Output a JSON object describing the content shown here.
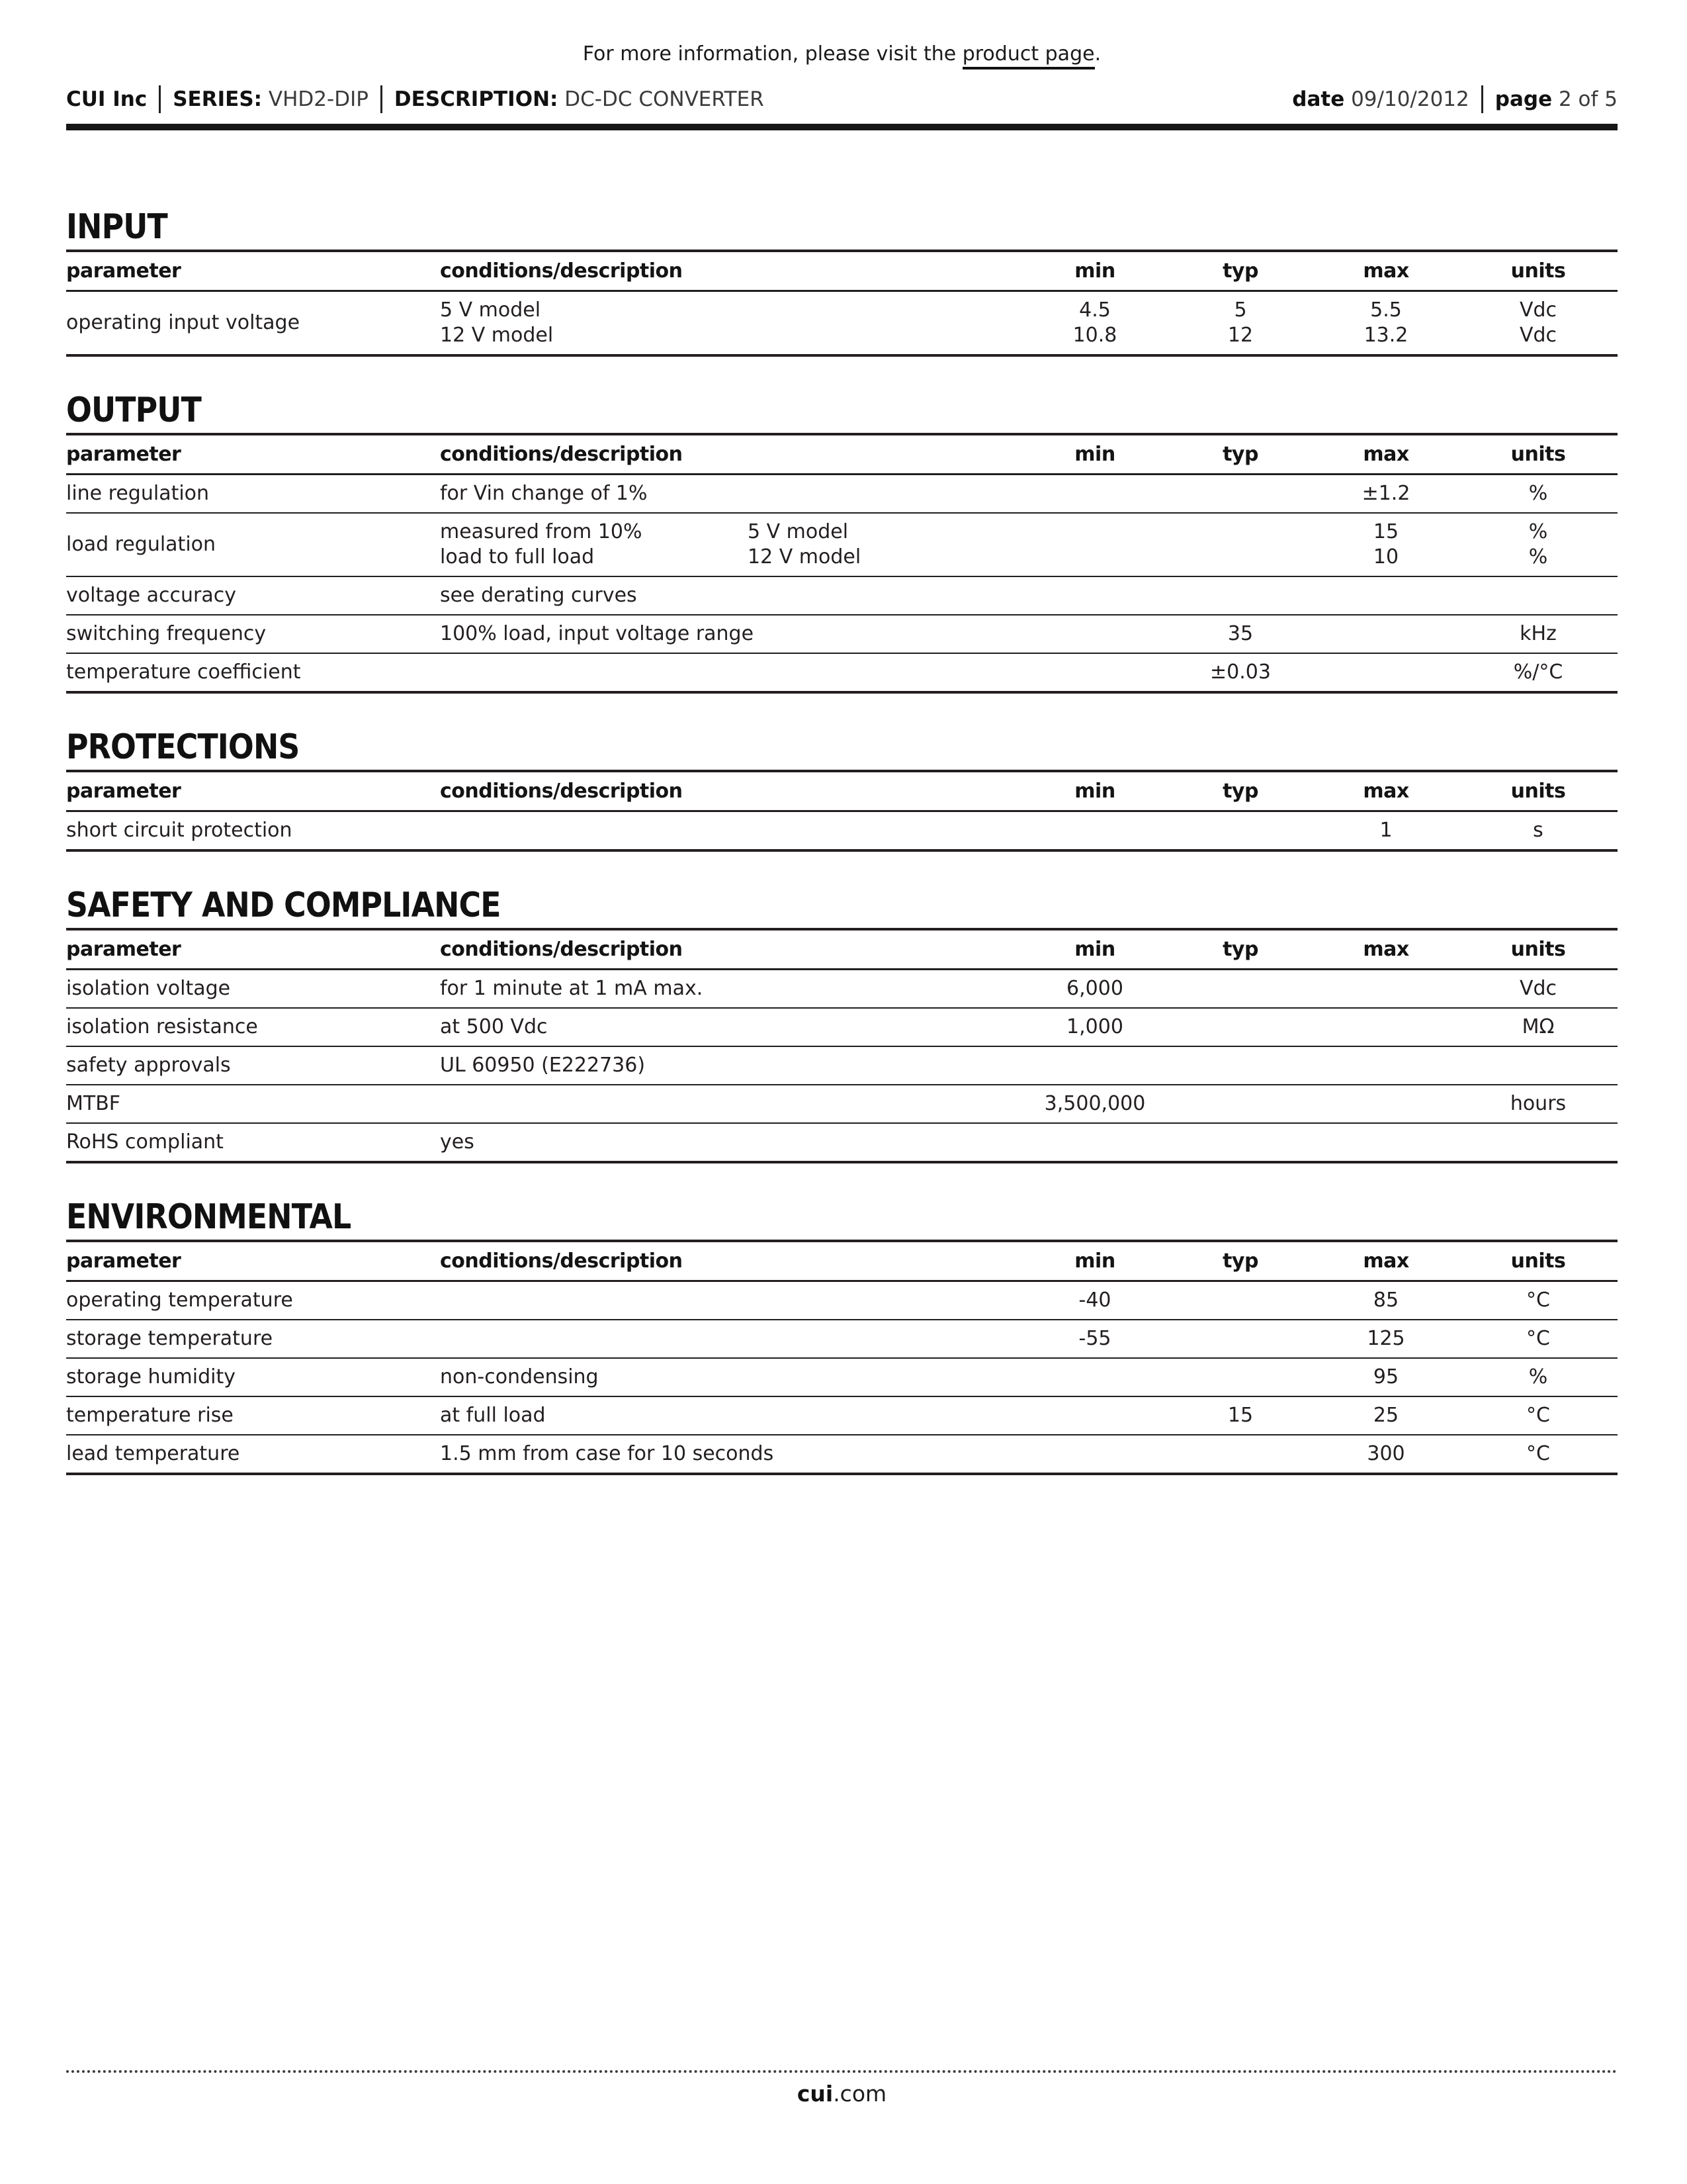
{
  "colors": {
    "text": "#231f20",
    "rule": "#231f20"
  },
  "top_note": {
    "prefix": "For more information, please visit the ",
    "link_text": "product page",
    "suffix": "."
  },
  "header": {
    "company": "CUI Inc",
    "series_label": "SERIES:",
    "series_value": "VHD2-DIP",
    "description_label": "DESCRIPTION:",
    "description_value": "DC-DC CONVERTER",
    "date_label": "date",
    "date_value": "09/10/2012",
    "page_label": "page",
    "page_value": "2 of 5"
  },
  "table_headers": {
    "parameter": "parameter",
    "conditions": "conditions/description",
    "min": "min",
    "typ": "typ",
    "max": "max",
    "units": "units"
  },
  "sections": [
    {
      "title": "INPUT",
      "rows": [
        {
          "parameter": "operating input voltage",
          "lines": [
            {
              "condA": "5 V model",
              "condB": "",
              "min": "4.5",
              "typ": "5",
              "max": "5.5",
              "units": "Vdc"
            },
            {
              "condA": "12 V model",
              "condB": "",
              "min": "10.8",
              "typ": "12",
              "max": "13.2",
              "units": "Vdc"
            }
          ]
        }
      ]
    },
    {
      "title": "OUTPUT",
      "rows": [
        {
          "parameter": "line regulation",
          "lines": [
            {
              "condA": "for Vin change of 1%",
              "condB": "",
              "min": "",
              "typ": "",
              "max": "±1.2",
              "units": "%"
            }
          ]
        },
        {
          "parameter": "load regulation",
          "lines": [
            {
              "condA": "measured from 10%",
              "condB": "5 V model",
              "min": "",
              "typ": "",
              "max": "15",
              "units": "%"
            },
            {
              "condA": "load to full load",
              "condB": "12 V model",
              "min": "",
              "typ": "",
              "max": "10",
              "units": "%"
            }
          ]
        },
        {
          "parameter": "voltage accuracy",
          "lines": [
            {
              "condA": "see derating curves",
              "condB": "",
              "min": "",
              "typ": "",
              "max": "",
              "units": ""
            }
          ]
        },
        {
          "parameter": "switching frequency",
          "lines": [
            {
              "condA": "100% load, input voltage range",
              "condB": "",
              "min": "",
              "typ": "35",
              "max": "",
              "units": "kHz"
            }
          ]
        },
        {
          "parameter": "temperature coefficient",
          "lines": [
            {
              "condA": "",
              "condB": "",
              "min": "",
              "typ": "±0.03",
              "max": "",
              "units": "%/°C"
            }
          ]
        }
      ]
    },
    {
      "title": "PROTECTIONS",
      "rows": [
        {
          "parameter": "short circuit protection",
          "lines": [
            {
              "condA": "",
              "condB": "",
              "min": "",
              "typ": "",
              "max": "1",
              "units": "s"
            }
          ]
        }
      ]
    },
    {
      "title": "SAFETY AND COMPLIANCE",
      "rows": [
        {
          "parameter": "isolation voltage",
          "lines": [
            {
              "condA": "for 1 minute at 1 mA max.",
              "condB": "",
              "min": "6,000",
              "typ": "",
              "max": "",
              "units": "Vdc"
            }
          ]
        },
        {
          "parameter": "isolation resistance",
          "lines": [
            {
              "condA": "at 500 Vdc",
              "condB": "",
              "min": "1,000",
              "typ": "",
              "max": "",
              "units": "MΩ"
            }
          ]
        },
        {
          "parameter": "safety approvals",
          "lines": [
            {
              "condA": "UL 60950 (E222736)",
              "condB": "",
              "min": "",
              "typ": "",
              "max": "",
              "units": ""
            }
          ]
        },
        {
          "parameter": "MTBF",
          "lines": [
            {
              "condA": "",
              "condB": "",
              "min": "3,500,000",
              "typ": "",
              "max": "",
              "units": "hours"
            }
          ]
        },
        {
          "parameter": "RoHS compliant",
          "lines": [
            {
              "condA": "yes",
              "condB": "",
              "min": "",
              "typ": "",
              "max": "",
              "units": ""
            }
          ]
        }
      ]
    },
    {
      "title": "ENVIRONMENTAL",
      "rows": [
        {
          "parameter": "operating temperature",
          "lines": [
            {
              "condA": "",
              "condB": "",
              "min": "-40",
              "typ": "",
              "max": "85",
              "units": "°C"
            }
          ]
        },
        {
          "parameter": "storage temperature",
          "lines": [
            {
              "condA": "",
              "condB": "",
              "min": "-55",
              "typ": "",
              "max": "125",
              "units": "°C"
            }
          ]
        },
        {
          "parameter": "storage humidity",
          "lines": [
            {
              "condA": "non-condensing",
              "condB": "",
              "min": "",
              "typ": "",
              "max": "95",
              "units": "%"
            }
          ]
        },
        {
          "parameter": "temperature rise",
          "lines": [
            {
              "condA": "at full load",
              "condB": "",
              "min": "",
              "typ": "15",
              "max": "25",
              "units": "°C"
            }
          ]
        },
        {
          "parameter": "lead temperature",
          "lines": [
            {
              "condA": "1.5 mm from case for 10 seconds",
              "condB": "",
              "min": "",
              "typ": "",
              "max": "300",
              "units": "°C"
            }
          ]
        }
      ]
    }
  ],
  "footer": {
    "site_bold": "cui",
    "site_rest": ".com"
  }
}
